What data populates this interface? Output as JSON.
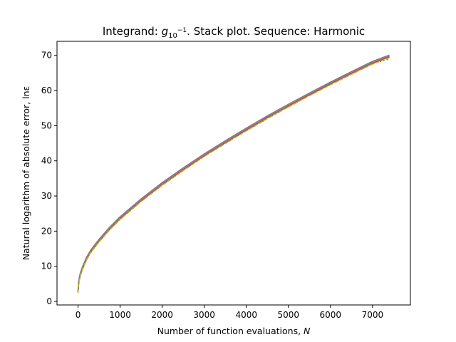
{
  "chart_data": {
    "type": "line",
    "title_prefix": "Integrand: ",
    "title_symbol": "g",
    "title_subscript": "10",
    "title_superscript": "−1",
    "title_suffix": ". Stack plot. Sequence: Harmonic",
    "xlabel_prefix": "Number of function evaluations, ",
    "xlabel_symbol": "N",
    "ylabel": "Natural logarithm of absolute error, lnε",
    "xlim": [
      -500,
      7900
    ],
    "ylim": [
      -1,
      74
    ],
    "xticks": [
      0,
      1000,
      2000,
      3000,
      4000,
      5000,
      6000,
      7000
    ],
    "yticks": [
      0,
      10,
      20,
      30,
      40,
      50,
      60,
      70
    ],
    "grid": false,
    "x": [
      2,
      10,
      25,
      50,
      100,
      200,
      300,
      500,
      750,
      1000,
      1500,
      2000,
      2500,
      3000,
      3500,
      4000,
      4500,
      5000,
      5500,
      6000,
      6500,
      7000,
      7400
    ],
    "series": [
      {
        "color": "#1f77b4",
        "style": "dotted",
        "values": [
          2.5,
          4.4,
          5.8,
          7.2,
          9.0,
          11.8,
          13.9,
          17.0,
          20.4,
          23.4,
          28.5,
          33.1,
          37.3,
          41.3,
          45.0,
          48.6,
          52.0,
          55.4,
          58.6,
          61.7,
          64.7,
          67.6,
          69.0
        ]
      },
      {
        "color": "#ff7f0e",
        "style": "solid",
        "values": [
          2.6,
          4.5,
          5.9,
          7.3,
          9.1,
          11.9,
          14.0,
          17.1,
          20.5,
          23.5,
          28.6,
          33.2,
          37.4,
          41.4,
          45.1,
          48.7,
          52.2,
          55.5,
          58.7,
          61.8,
          64.8,
          67.7,
          69.5
        ]
      },
      {
        "color": "#2ca02c",
        "style": "dashed",
        "values": [
          2.7,
          4.6,
          6.0,
          7.4,
          9.2,
          12.0,
          14.1,
          17.2,
          20.6,
          23.6,
          28.7,
          33.3,
          37.5,
          41.5,
          45.2,
          48.8,
          52.3,
          55.6,
          58.8,
          61.9,
          64.9,
          67.8,
          69.6
        ]
      },
      {
        "color": "#d62728",
        "style": "solid",
        "values": [
          2.8,
          4.7,
          6.1,
          7.5,
          9.3,
          12.1,
          14.2,
          17.3,
          20.7,
          23.7,
          28.8,
          33.4,
          37.6,
          41.6,
          45.3,
          48.9,
          52.4,
          55.7,
          58.9,
          62.0,
          65.0,
          67.9,
          69.7
        ]
      },
      {
        "color": "#9467bd",
        "style": "solid",
        "values": [
          2.9,
          4.8,
          6.2,
          7.6,
          9.4,
          12.2,
          14.3,
          17.4,
          20.8,
          23.8,
          28.9,
          33.5,
          37.7,
          41.7,
          45.4,
          49.0,
          52.5,
          55.8,
          59.0,
          62.1,
          65.1,
          68.0,
          69.8
        ]
      },
      {
        "color": "#8c564b",
        "style": "solid",
        "values": [
          3.0,
          4.9,
          6.3,
          7.7,
          9.5,
          12.3,
          14.4,
          17.5,
          20.9,
          23.9,
          29.0,
          33.6,
          37.8,
          41.8,
          45.5,
          49.1,
          52.6,
          55.9,
          59.1,
          62.2,
          65.2,
          68.1,
          69.9
        ]
      },
      {
        "color": "#e377c2",
        "style": "solid",
        "values": [
          3.1,
          5.0,
          6.4,
          7.8,
          9.6,
          12.4,
          14.5,
          17.6,
          21.0,
          24.0,
          29.1,
          33.7,
          37.9,
          41.9,
          45.6,
          49.2,
          52.7,
          56.0,
          59.2,
          62.3,
          65.3,
          68.2,
          70.0
        ]
      },
      {
        "color": "#7f7f7f",
        "style": "solid",
        "values": [
          3.2,
          5.1,
          6.5,
          7.9,
          9.7,
          12.5,
          14.6,
          17.7,
          21.1,
          24.1,
          29.2,
          33.8,
          38.0,
          42.0,
          45.7,
          49.3,
          52.8,
          56.1,
          59.3,
          62.4,
          65.4,
          68.3,
          70.1
        ]
      },
      {
        "color": "#bcbd22",
        "style": "dashed",
        "values": [
          2.4,
          4.3,
          5.7,
          7.1,
          8.9,
          11.7,
          13.8,
          16.9,
          20.3,
          23.3,
          28.4,
          33.0,
          37.2,
          41.2,
          44.9,
          48.5,
          52.0,
          55.3,
          58.5,
          61.6,
          64.6,
          67.5,
          69.3
        ]
      }
    ]
  }
}
